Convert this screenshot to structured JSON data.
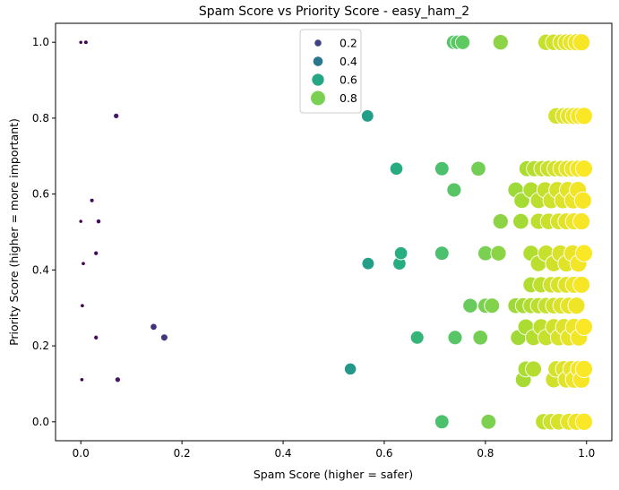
{
  "chart_data": {
    "type": "scatter",
    "title": "Spam Score vs Priority Score - easy_ham_2",
    "xlabel": "Spam Score (higher = safer)",
    "ylabel": "Priority Score (higher = more important)",
    "xlim": [
      -0.05,
      1.05
    ],
    "ylim": [
      -0.05,
      1.05
    ],
    "xticks": [
      "0.0",
      "0.2",
      "0.4",
      "0.6",
      "0.8",
      "1.0"
    ],
    "yticks": [
      "0.0",
      "0.2",
      "0.4",
      "0.6",
      "0.8",
      "1.0"
    ],
    "xtick_values": [
      0,
      0.2,
      0.4,
      0.6,
      0.8,
      1.0
    ],
    "ytick_values": [
      0,
      0.2,
      0.4,
      0.6,
      0.8,
      1.0
    ],
    "grid": false,
    "colormap": "viridis",
    "size_encodes": "spam score",
    "color_encodes": "spam score",
    "legend": {
      "placement": "upper center",
      "entries": [
        {
          "label": "0.2",
          "value": 0.2
        },
        {
          "label": "0.4",
          "value": 0.4
        },
        {
          "label": "0.6",
          "value": 0.6
        },
        {
          "label": "0.8",
          "value": 0.8
        }
      ]
    },
    "points": [
      [
        0.0,
        1.0
      ],
      [
        0.01,
        1.0
      ],
      [
        0.07,
        0.806
      ],
      [
        0.567,
        0.806
      ],
      [
        0.737,
        1.0
      ],
      [
        0.745,
        1.0
      ],
      [
        0.755,
        1.0
      ],
      [
        0.83,
        1.0
      ],
      [
        0.92,
        1.0
      ],
      [
        0.935,
        1.0
      ],
      [
        0.95,
        1.0
      ],
      [
        0.96,
        1.0
      ],
      [
        0.97,
        1.0
      ],
      [
        0.98,
        1.0
      ],
      [
        0.99,
        1.0
      ],
      [
        0.94,
        0.806
      ],
      [
        0.955,
        0.806
      ],
      [
        0.965,
        0.806
      ],
      [
        0.975,
        0.806
      ],
      [
        0.985,
        0.806
      ],
      [
        0.995,
        0.806
      ],
      [
        0.022,
        0.583
      ],
      [
        0.0,
        0.528
      ],
      [
        0.035,
        0.528
      ],
      [
        0.03,
        0.444
      ],
      [
        0.005,
        0.417
      ],
      [
        0.003,
        0.306
      ],
      [
        0.144,
        0.25
      ],
      [
        0.165,
        0.222
      ],
      [
        0.03,
        0.222
      ],
      [
        0.002,
        0.111
      ],
      [
        0.073,
        0.111
      ],
      [
        0.533,
        0.139
      ],
      [
        0.624,
        0.667
      ],
      [
        0.714,
        0.667
      ],
      [
        0.786,
        0.667
      ],
      [
        0.738,
        0.611
      ],
      [
        0.882,
        0.667
      ],
      [
        0.897,
        0.667
      ],
      [
        0.912,
        0.667
      ],
      [
        0.925,
        0.667
      ],
      [
        0.938,
        0.667
      ],
      [
        0.95,
        0.667
      ],
      [
        0.962,
        0.667
      ],
      [
        0.973,
        0.667
      ],
      [
        0.984,
        0.667
      ],
      [
        0.995,
        0.667
      ],
      [
        0.86,
        0.611
      ],
      [
        0.872,
        0.583
      ],
      [
        0.89,
        0.611
      ],
      [
        0.905,
        0.583
      ],
      [
        0.918,
        0.611
      ],
      [
        0.93,
        0.583
      ],
      [
        0.942,
        0.611
      ],
      [
        0.953,
        0.583
      ],
      [
        0.963,
        0.611
      ],
      [
        0.973,
        0.583
      ],
      [
        0.983,
        0.611
      ],
      [
        0.993,
        0.583
      ],
      [
        0.83,
        0.528
      ],
      [
        0.87,
        0.528
      ],
      [
        0.905,
        0.528
      ],
      [
        0.925,
        0.528
      ],
      [
        0.945,
        0.528
      ],
      [
        0.96,
        0.528
      ],
      [
        0.975,
        0.528
      ],
      [
        0.99,
        0.528
      ],
      [
        0.568,
        0.417
      ],
      [
        0.633,
        0.444
      ],
      [
        0.63,
        0.417
      ],
      [
        0.714,
        0.444
      ],
      [
        0.8,
        0.444
      ],
      [
        0.826,
        0.444
      ],
      [
        0.89,
        0.444
      ],
      [
        0.905,
        0.417
      ],
      [
        0.92,
        0.444
      ],
      [
        0.935,
        0.417
      ],
      [
        0.948,
        0.444
      ],
      [
        0.96,
        0.417
      ],
      [
        0.972,
        0.444
      ],
      [
        0.984,
        0.417
      ],
      [
        0.995,
        0.444
      ],
      [
        0.89,
        0.361
      ],
      [
        0.91,
        0.361
      ],
      [
        0.93,
        0.361
      ],
      [
        0.945,
        0.361
      ],
      [
        0.96,
        0.361
      ],
      [
        0.975,
        0.361
      ],
      [
        0.99,
        0.361
      ],
      [
        0.77,
        0.306
      ],
      [
        0.8,
        0.306
      ],
      [
        0.813,
        0.306
      ],
      [
        0.86,
        0.306
      ],
      [
        0.875,
        0.306
      ],
      [
        0.89,
        0.306
      ],
      [
        0.905,
        0.306
      ],
      [
        0.92,
        0.306
      ],
      [
        0.935,
        0.306
      ],
      [
        0.95,
        0.306
      ],
      [
        0.965,
        0.306
      ],
      [
        0.98,
        0.306
      ],
      [
        0.665,
        0.222
      ],
      [
        0.74,
        0.222
      ],
      [
        0.79,
        0.222
      ],
      [
        0.865,
        0.222
      ],
      [
        0.88,
        0.25
      ],
      [
        0.895,
        0.222
      ],
      [
        0.91,
        0.25
      ],
      [
        0.92,
        0.222
      ],
      [
        0.935,
        0.25
      ],
      [
        0.945,
        0.222
      ],
      [
        0.955,
        0.25
      ],
      [
        0.965,
        0.222
      ],
      [
        0.975,
        0.25
      ],
      [
        0.985,
        0.222
      ],
      [
        0.995,
        0.25
      ],
      [
        0.88,
        0.139
      ],
      [
        0.895,
        0.139
      ],
      [
        0.94,
        0.139
      ],
      [
        0.955,
        0.139
      ],
      [
        0.97,
        0.139
      ],
      [
        0.985,
        0.139
      ],
      [
        0.995,
        0.139
      ],
      [
        0.875,
        0.111
      ],
      [
        0.935,
        0.111
      ],
      [
        0.96,
        0.111
      ],
      [
        0.975,
        0.111
      ],
      [
        0.99,
        0.111
      ],
      [
        0.714,
        0.0
      ],
      [
        0.806,
        0.0
      ],
      [
        0.915,
        0.0
      ],
      [
        0.93,
        0.0
      ],
      [
        0.945,
        0.0
      ],
      [
        0.965,
        0.0
      ],
      [
        0.98,
        0.0
      ],
      [
        0.995,
        0.0
      ]
    ]
  }
}
